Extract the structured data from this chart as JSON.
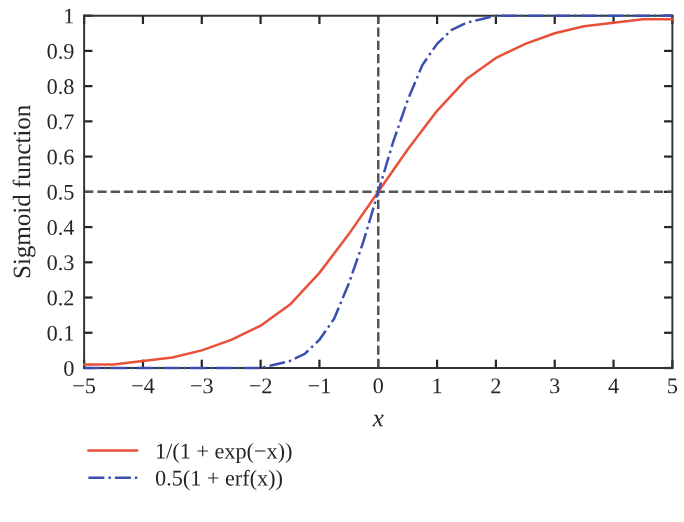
{
  "chart_data": {
    "type": "line",
    "xlabel": "x",
    "ylabel": "Sigmoid function",
    "xlim": [
      -5,
      5
    ],
    "xticks": [
      {
        "value": -5,
        "label": "−5"
      },
      {
        "value": -4,
        "label": "−4"
      },
      {
        "value": -3,
        "label": "−3"
      },
      {
        "value": -2,
        "label": "−2"
      },
      {
        "value": -1,
        "label": "−1"
      },
      0,
      1,
      2,
      3,
      4,
      5
    ],
    "ylim": [
      0,
      1
    ],
    "yticks": [
      0,
      0.1,
      0.2,
      0.3,
      0.4,
      0.5,
      0.6,
      0.7,
      0.8,
      0.9,
      1
    ],
    "series": [
      {
        "name": "1/(1 + exp(−x))",
        "color": "#e8503a",
        "line_style": "solid",
        "x": [
          -5,
          -4.5,
          -4,
          -3.5,
          -3,
          -2.5,
          -2,
          -1.5,
          -1,
          -0.5,
          0,
          0.5,
          1,
          1.5,
          2,
          2.5,
          3,
          3.5,
          4,
          4.5,
          5
        ],
        "values": [
          0.01,
          0.01,
          0.02,
          0.03,
          0.05,
          0.08,
          0.12,
          0.18,
          0.27,
          0.38,
          0.5,
          0.62,
          0.73,
          0.82,
          0.88,
          0.92,
          0.95,
          0.97,
          0.98,
          0.99,
          0.99
        ]
      },
      {
        "name": "0.5(1 + erf(x))",
        "color": "#3a4fb0",
        "line_style": "dashdot",
        "x": [
          -5,
          -2.5,
          -2,
          -1.75,
          -1.5,
          -1.25,
          -1,
          -0.75,
          -0.5,
          -0.25,
          0,
          0.25,
          0.5,
          0.75,
          1,
          1.25,
          1.5,
          1.75,
          2,
          2.5,
          5
        ],
        "values": [
          0,
          0,
          0,
          0.01,
          0.02,
          0.04,
          0.08,
          0.14,
          0.24,
          0.36,
          0.5,
          0.64,
          0.76,
          0.86,
          0.92,
          0.96,
          0.98,
          0.99,
          1,
          1,
          1
        ]
      }
    ],
    "ref_lines": [
      {
        "axis": "x",
        "value": 0,
        "color": "#555555",
        "line_style": "dashed"
      },
      {
        "axis": "y",
        "value": 0.5,
        "color": "#555555",
        "line_style": "dashed"
      }
    ],
    "grid": false,
    "legend": "bottom"
  }
}
